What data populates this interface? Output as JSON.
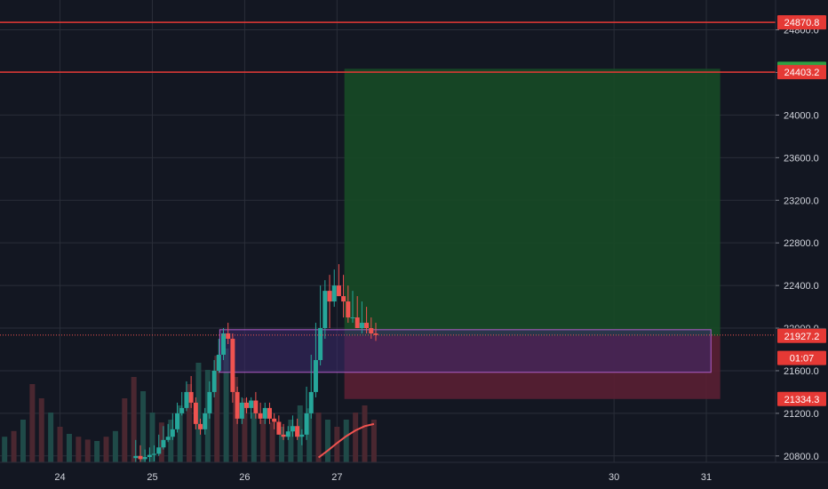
{
  "chart_data": {
    "type": "candlestick",
    "title": "",
    "xlabel": "",
    "ylabel": "",
    "ylim": [
      20740,
      25080
    ],
    "xlim": [
      23.35,
      31.75
    ],
    "grid": true,
    "y_ticks": [
      {
        "value": 20800,
        "label": "20800.0"
      },
      {
        "value": 21200,
        "label": "21200.0"
      },
      {
        "value": 21600,
        "label": "21600.0"
      },
      {
        "value": 22000,
        "label": "22000.0"
      },
      {
        "value": 22400,
        "label": "22400.0"
      },
      {
        "value": 22800,
        "label": "22800.0"
      },
      {
        "value": 23200,
        "label": "23200.0"
      },
      {
        "value": 23600,
        "label": "23600.0"
      },
      {
        "value": 24000,
        "label": "24000.0"
      },
      {
        "value": 24400,
        "label": "24400.0"
      },
      {
        "value": 24800,
        "label": "24800.0"
      }
    ],
    "x_ticks": [
      {
        "value": 24,
        "label": "24"
      },
      {
        "value": 25,
        "label": "25"
      },
      {
        "value": 26,
        "label": "26"
      },
      {
        "value": 27,
        "label": "27"
      },
      {
        "value": 30,
        "label": "30"
      },
      {
        "value": 31,
        "label": "31"
      }
    ],
    "horizontal_lines": [
      {
        "value": 24870.8,
        "color": "#e53935"
      },
      {
        "value": 24403.2,
        "color": "#e53935"
      }
    ],
    "price_labels": [
      {
        "value": 24870.8,
        "label": "24870.8",
        "color": "#e53935"
      },
      {
        "value": 24434.3,
        "label": "24434.3",
        "color": "#2ea043"
      },
      {
        "value": 24403.2,
        "label": "24403.2",
        "color": "#e53935"
      },
      {
        "value": 21935.0,
        "label": "21935.0",
        "color": "#434651"
      },
      {
        "value": 21927.2,
        "label": "21927.2",
        "color": "#e53935"
      },
      {
        "value": 21334.3,
        "label": "21334.3",
        "color": "#e53935"
      }
    ],
    "countdown": {
      "value": 21720,
      "label": "01:07",
      "color": "#e53935"
    },
    "position": {
      "x_start": 27.08,
      "x_end": 31.15,
      "entry": 21927.2,
      "target": 24434.3,
      "stop": 21334.3,
      "profit_color": "#174a26",
      "loss_color": "#5a1f33"
    },
    "zone": {
      "x_start": 25.73,
      "x_end": 31.05,
      "top": 21985,
      "bottom": 21585,
      "color": "#3d2a6b",
      "border": "#b05cc7"
    },
    "moving_average": {
      "color": "#f05350",
      "x": [
        26.8,
        26.9,
        27.0,
        27.1,
        27.2,
        27.3,
        27.4
      ],
      "y": [
        20785,
        20850,
        20920,
        20985,
        21040,
        21080,
        21100
      ]
    },
    "candles": {
      "up_color": "#26a69a",
      "down_color": "#ef5350",
      "x": [
        24.82,
        24.87,
        24.92,
        24.97,
        25.02,
        25.07,
        25.12,
        25.17,
        25.22,
        25.27,
        25.32,
        25.37,
        25.42,
        25.47,
        25.52,
        25.57,
        25.62,
        25.67,
        25.72,
        25.77,
        25.82,
        25.87,
        25.92,
        25.97,
        26.02,
        26.07,
        26.12,
        26.17,
        26.22,
        26.27,
        26.32,
        26.37,
        26.42,
        26.47,
        26.52,
        26.57,
        26.62,
        26.67,
        26.72,
        26.77,
        26.82,
        26.87,
        26.92,
        26.97,
        27.02,
        27.07,
        27.12,
        27.17,
        27.22,
        27.27,
        27.32,
        27.37,
        27.42
      ],
      "open": [
        20780,
        20800,
        20770,
        20790,
        20810,
        20820,
        20880,
        20950,
        20980,
        21050,
        21200,
        21250,
        21400,
        21300,
        21100,
        21050,
        21200,
        21400,
        21600,
        21750,
        21950,
        21900,
        21400,
        21150,
        21300,
        21250,
        21320,
        21200,
        21150,
        21250,
        21150,
        21120,
        21000,
        20980,
        21030,
        21080,
        20980,
        21000,
        21200,
        21400,
        21700,
        22000,
        22350,
        22250,
        22400,
        22300,
        22250,
        22100,
        22100,
        22000,
        22050,
        22000,
        21950
      ],
      "high": [
        20950,
        20900,
        20860,
        20880,
        20900,
        21000,
        21080,
        21100,
        21200,
        21300,
        21400,
        21500,
        21550,
        21350,
        21150,
        21250,
        21500,
        21700,
        21900,
        22000,
        22050,
        21950,
        21450,
        21350,
        21350,
        21350,
        21400,
        21300,
        21300,
        21300,
        21200,
        21180,
        21100,
        21080,
        21180,
        21150,
        21050,
        21450,
        21750,
        22050,
        22400,
        22450,
        22500,
        22550,
        22600,
        22500,
        22400,
        22350,
        22300,
        22250,
        22200,
        22100,
        22050
      ],
      "low": [
        20700,
        20720,
        20720,
        20730,
        20750,
        20800,
        20860,
        20930,
        20950,
        21020,
        21180,
        21220,
        21250,
        21050,
        21000,
        21000,
        21150,
        21350,
        21580,
        21700,
        21850,
        21300,
        21100,
        21100,
        21200,
        21150,
        21150,
        21100,
        21100,
        21100,
        21050,
        21000,
        20950,
        20950,
        20980,
        20950,
        20900,
        20950,
        21150,
        21350,
        21650,
        21900,
        22000,
        22200,
        22300,
        22100,
        22050,
        22050,
        22000,
        21950,
        21950,
        21900,
        21880
      ],
      "close": [
        20800,
        20770,
        20790,
        20810,
        20820,
        20880,
        20950,
        20980,
        21050,
        21200,
        21250,
        21400,
        21300,
        21100,
        21050,
        21200,
        21400,
        21600,
        21750,
        21950,
        21900,
        21400,
        21150,
        21300,
        21250,
        21320,
        21200,
        21150,
        21250,
        21150,
        21120,
        21000,
        20980,
        21030,
        21080,
        20980,
        21000,
        21200,
        21400,
        21700,
        22000,
        22350,
        22250,
        22400,
        22300,
        22250,
        22100,
        22100,
        22000,
        22050,
        22000,
        21950,
        21935
      ]
    },
    "volume": {
      "up_color": "#1f4a48",
      "down_color": "#4a2730",
      "x": [
        23.4,
        23.5,
        23.6,
        23.7,
        23.8,
        23.9,
        24.0,
        24.1,
        24.2,
        24.3,
        24.4,
        24.5,
        24.6,
        24.7,
        24.8,
        24.9,
        25.0,
        25.1,
        25.2,
        25.3,
        25.4,
        25.5,
        25.6,
        25.7,
        25.8,
        25.9,
        26.0,
        26.1,
        26.2,
        26.3,
        26.4,
        26.5,
        26.6,
        26.7,
        26.8,
        26.9,
        27.0,
        27.1,
        27.2,
        27.3,
        27.4
      ],
      "values": [
        0.18,
        0.22,
        0.3,
        0.55,
        0.45,
        0.35,
        0.25,
        0.2,
        0.18,
        0.16,
        0.15,
        0.18,
        0.22,
        0.45,
        0.6,
        0.5,
        0.35,
        0.28,
        0.3,
        0.4,
        0.55,
        0.7,
        0.65,
        0.75,
        0.8,
        0.6,
        0.45,
        0.35,
        0.3,
        0.28,
        0.25,
        0.3,
        0.4,
        0.38,
        0.35,
        0.3,
        0.25,
        0.3,
        0.35,
        0.4,
        0.3
      ],
      "dirs": [
        1,
        0,
        1,
        0,
        0,
        1,
        0,
        1,
        0,
        0,
        1,
        0,
        1,
        0,
        0,
        1,
        1,
        0,
        1,
        1,
        0,
        1,
        1,
        0,
        1,
        0,
        0,
        1,
        0,
        0,
        1,
        1,
        1,
        1,
        0,
        1,
        0,
        1,
        0,
        0,
        0
      ]
    }
  }
}
